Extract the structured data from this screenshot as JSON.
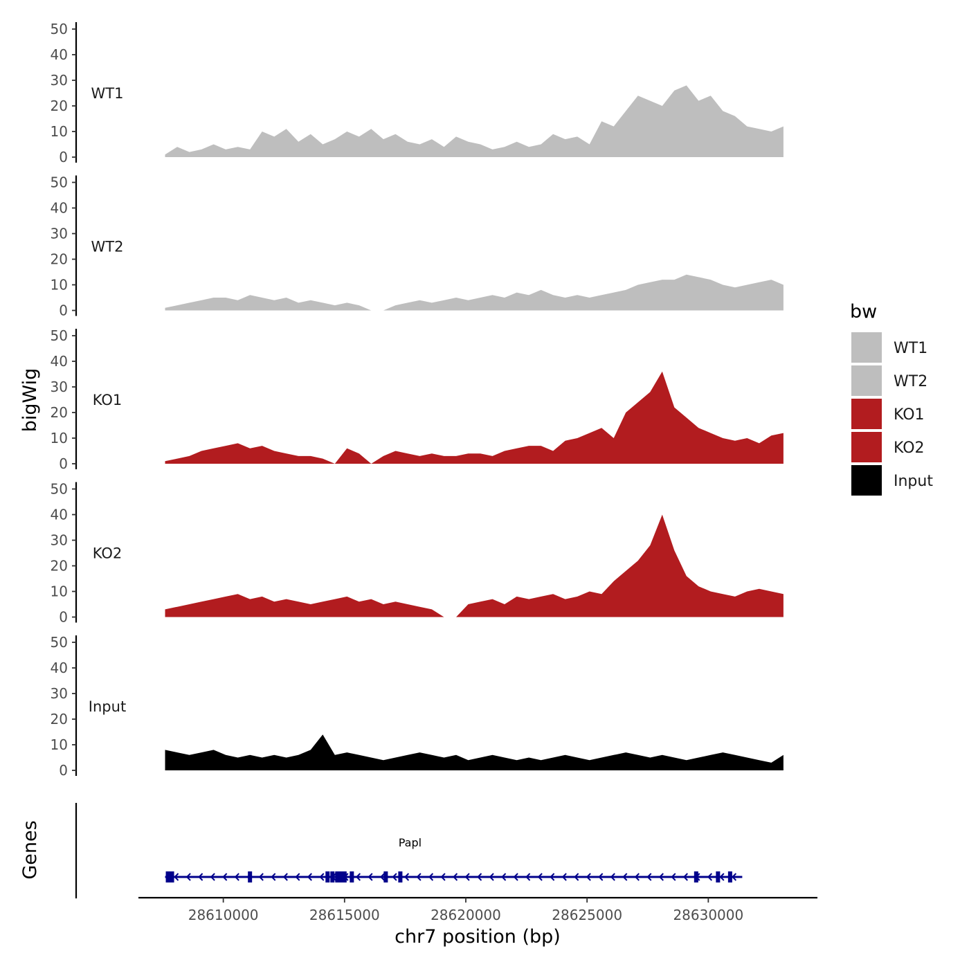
{
  "chart_data": {
    "type": "area",
    "title": "",
    "xlabel": "chr7 position (bp)",
    "ylabel": "bigWig",
    "genes_label": "Genes",
    "xlim": [
      28606500,
      28634500
    ],
    "x_ticks": [
      28610000,
      28615000,
      28620000,
      28625000,
      28630000
    ],
    "x_tick_labels": [
      "28610000",
      "28615000",
      "28620000",
      "28625000",
      "28630000"
    ],
    "ylim": [
      0,
      50
    ],
    "y_ticks": [
      0,
      10,
      20,
      30,
      40,
      50
    ],
    "y_tick_labels": [
      "0",
      "10",
      "20",
      "30",
      "40",
      "50"
    ],
    "x": [
      28607600,
      28608100,
      28608600,
      28609100,
      28609600,
      28610100,
      28610600,
      28611100,
      28611600,
      28612100,
      28612600,
      28613100,
      28613600,
      28614100,
      28614600,
      28615100,
      28615600,
      28616100,
      28616600,
      28617100,
      28617600,
      28618100,
      28618600,
      28619100,
      28619600,
      28620100,
      28620600,
      28621100,
      28621600,
      28622100,
      28622600,
      28623100,
      28623600,
      28624100,
      28624600,
      28625100,
      28625600,
      28626100,
      28626600,
      28627100,
      28627600,
      28628100,
      28628600,
      28629100,
      28629600,
      28630100,
      28630600,
      28631100,
      28631600,
      28632100,
      28632600,
      28633100
    ],
    "legend_title": "bw",
    "legend": [
      {
        "name": "WT1",
        "color": "#bebebe"
      },
      {
        "name": "WT2",
        "color": "#bebebe"
      },
      {
        "name": "KO1",
        "color": "#b21c1f"
      },
      {
        "name": "KO2",
        "color": "#b21c1f"
      },
      {
        "name": "Input",
        "color": "#000000"
      }
    ],
    "series": [
      {
        "name": "WT1",
        "color": "#bebebe",
        "values": [
          1,
          4,
          2,
          3,
          5,
          3,
          4,
          3,
          10,
          8,
          11,
          6,
          9,
          5,
          7,
          10,
          8,
          11,
          7,
          9,
          6,
          5,
          7,
          4,
          8,
          6,
          5,
          3,
          4,
          6,
          4,
          5,
          9,
          7,
          8,
          5,
          14,
          12,
          18,
          24,
          22,
          20,
          26,
          28,
          22,
          24,
          18,
          16,
          12,
          11,
          10,
          12
        ]
      },
      {
        "name": "WT2",
        "color": "#bebebe",
        "values": [
          1,
          2,
          3,
          4,
          5,
          5,
          4,
          6,
          5,
          4,
          5,
          3,
          4,
          3,
          2,
          3,
          2,
          0,
          0,
          2,
          3,
          4,
          3,
          4,
          5,
          4,
          5,
          6,
          5,
          7,
          6,
          8,
          6,
          5,
          6,
          5,
          6,
          7,
          8,
          10,
          11,
          12,
          12,
          14,
          13,
          12,
          10,
          9,
          10,
          11,
          12,
          10
        ]
      },
      {
        "name": "KO1",
        "color": "#b21c1f",
        "values": [
          1,
          2,
          3,
          5,
          6,
          7,
          8,
          6,
          7,
          5,
          4,
          3,
          3,
          2,
          0,
          6,
          4,
          0,
          3,
          5,
          4,
          3,
          4,
          3,
          3,
          4,
          4,
          3,
          5,
          6,
          7,
          7,
          5,
          9,
          10,
          12,
          14,
          10,
          20,
          24,
          28,
          36,
          22,
          18,
          14,
          12,
          10,
          9,
          10,
          8,
          11,
          12
        ]
      },
      {
        "name": "KO2",
        "color": "#b21c1f",
        "values": [
          3,
          4,
          5,
          6,
          7,
          8,
          9,
          7,
          8,
          6,
          7,
          6,
          5,
          6,
          7,
          8,
          6,
          7,
          5,
          6,
          5,
          4,
          3,
          0,
          0,
          5,
          6,
          7,
          5,
          8,
          7,
          8,
          9,
          7,
          8,
          10,
          9,
          14,
          18,
          22,
          28,
          40,
          26,
          16,
          12,
          10,
          9,
          8,
          10,
          11,
          10,
          9
        ]
      },
      {
        "name": "Input",
        "color": "#000000",
        "values": [
          8,
          7,
          6,
          7,
          8,
          6,
          5,
          6,
          5,
          6,
          5,
          6,
          8,
          14,
          6,
          7,
          6,
          5,
          4,
          5,
          6,
          7,
          6,
          5,
          6,
          4,
          5,
          6,
          5,
          4,
          5,
          4,
          5,
          6,
          5,
          4,
          5,
          6,
          7,
          6,
          5,
          6,
          5,
          4,
          5,
          6,
          7,
          6,
          5,
          4,
          3,
          6
        ]
      }
    ],
    "gene": {
      "name": "Papl",
      "start": 28607600,
      "end": 28631400,
      "strand": "-",
      "color": "#00008b",
      "exons": [
        28607800,
        28611100,
        28614300,
        28614500,
        28614700,
        28614850,
        28615000,
        28615300,
        28616700,
        28617300,
        28629500,
        28630400,
        28630900
      ]
    }
  }
}
